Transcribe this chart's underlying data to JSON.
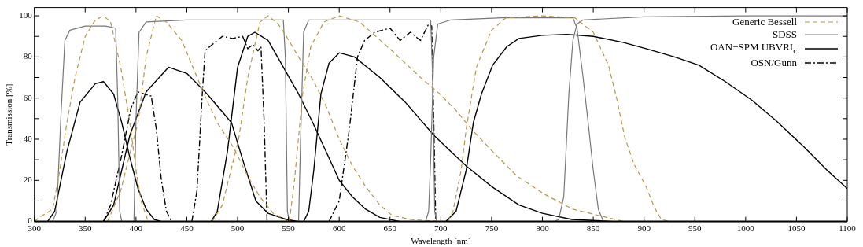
{
  "chart_data": {
    "type": "line",
    "xlabel": "Wavelength [nm]",
    "ylabel": "Transmission [%]",
    "xlim": [
      300,
      1100
    ],
    "xticks": [
      300,
      350,
      400,
      450,
      500,
      550,
      600,
      650,
      700,
      750,
      800,
      850,
      900,
      950,
      1000,
      1050,
      1100
    ],
    "ylim": [
      0,
      104
    ],
    "yticks": [
      0,
      {
        "value": 10,
        "label": null
      },
      20,
      {
        "value": 30,
        "label": null
      },
      40,
      {
        "value": 50,
        "label": null
      },
      60,
      {
        "value": 70,
        "label": null
      },
      80,
      {
        "value": 90,
        "label": null
      },
      100
    ],
    "grid": false,
    "legend": "top right",
    "marker": "none",
    "series": [
      {
        "name": "Generic Bessell",
        "color": "#b8964a",
        "line_style": "dashed",
        "x": [
          300,
          305,
          318,
          325,
          332,
          340,
          350,
          360,
          368,
          375,
          385,
          394,
          400,
          405,
          412
        ],
        "values": [
          0,
          2,
          6,
          25,
          48,
          70,
          90,
          98,
          100,
          97,
          75,
          48,
          25,
          10,
          0
        ]
      },
      {
        "color": "#b8964a",
        "line_style": "dashed",
        "x": [
          372,
          385,
          395,
          402,
          410,
          420,
          430,
          445,
          467,
          480,
          496,
          510,
          522,
          535,
          550
        ],
        "values": [
          0,
          15,
          35,
          48,
          80,
          100,
          97,
          88,
          62,
          48,
          36,
          22,
          12,
          4,
          0
        ]
      },
      {
        "color": "#b8964a",
        "line_style": "dashed",
        "x": [
          475,
          485,
          495,
          501,
          510,
          522,
          530,
          540,
          548,
          560,
          574,
          588,
          600,
          613,
          626,
          640,
          652,
          670,
          700
        ],
        "values": [
          0,
          8,
          28,
          40,
          70,
          97,
          100,
          96,
          90,
          80,
          69,
          55,
          40,
          27,
          17,
          8,
          3,
          1,
          0
        ]
      },
      {
        "color": "#b8964a",
        "line_style": "dashed",
        "x": [
          551,
          556,
          564,
          572,
          585,
          600,
          620,
          652,
          680,
          699,
          715,
          730,
          751,
          775,
          803,
          830,
          855,
          880
        ],
        "values": [
          0,
          20,
          62,
          85,
          97,
          100,
          97,
          83,
          70,
          62,
          54,
          45,
          34,
          22,
          13,
          6,
          3,
          0
        ]
      },
      {
        "color": "#b8964a",
        "line_style": "dashed",
        "x": [
          707,
          712,
          720,
          725,
          735,
          750,
          764,
          800,
          832,
          850,
          865,
          873,
          881,
          890,
          902,
          910,
          917,
          925
        ],
        "values": [
          0,
          5,
          25,
          45,
          75,
          93,
          99,
          100,
          99,
          92,
          76,
          60,
          41,
          28,
          17,
          7,
          1,
          0
        ]
      },
      {
        "name": "SDSS",
        "color": "#777777",
        "line_style": "solid",
        "x": [
          318,
          322,
          326,
          330,
          335,
          350,
          370,
          380,
          382,
          384,
          386
        ],
        "values": [
          0,
          5,
          50,
          88,
          93,
          95,
          95,
          94,
          60,
          5,
          0
        ]
      },
      {
        "color": "#777777",
        "line_style": "solid",
        "x": [
          398,
          400,
          403,
          410,
          450,
          500,
          545,
          547,
          549,
          551
        ],
        "values": [
          0,
          50,
          92,
          97,
          98,
          98,
          98,
          80,
          5,
          0
        ]
      },
      {
        "color": "#777777",
        "line_style": "solid",
        "x": [
          560,
          562,
          565,
          570,
          620,
          690,
          692,
          694,
          696
        ],
        "values": [
          0,
          40,
          92,
          98,
          98,
          98,
          70,
          5,
          0
        ]
      },
      {
        "color": "#777777",
        "line_style": "solid",
        "x": [
          685,
          688,
          690,
          693,
          697,
          710,
          760,
          830,
          834,
          840,
          845,
          850,
          855,
          860
        ],
        "values": [
          0,
          5,
          30,
          80,
          96,
          98,
          99,
          99,
          94,
          70,
          48,
          25,
          6,
          0
        ]
      },
      {
        "color": "#777777",
        "line_style": "solid",
        "x": [
          812,
          816,
          821,
          826,
          830,
          834,
          840,
          900,
          1000,
          1100
        ],
        "values": [
          0,
          1,
          12,
          62,
          88,
          96,
          98,
          99.5,
          100,
          100
        ]
      },
      {
        "name": "OAN−SPM UBVRI$_{c}$",
        "color": "#000000",
        "line_style": "solid",
        "x": [
          313,
          320,
          332,
          345,
          360,
          368,
          378,
          386,
          394,
          402,
          410,
          418,
          425
        ],
        "values": [
          0,
          5,
          34,
          58,
          67,
          68,
          62,
          48,
          31,
          16,
          6,
          1,
          0
        ]
      },
      {
        "color": "#000000",
        "line_style": "solid",
        "x": [
          368,
          378,
          394,
          410,
          432,
          450,
          470,
          494,
          505,
          518,
          530,
          548,
          560
        ],
        "values": [
          0,
          8,
          42,
          63,
          75,
          72,
          62,
          48,
          30,
          10,
          4,
          1,
          0
        ]
      },
      {
        "color": "#000000",
        "line_style": "solid",
        "x": [
          474,
          480,
          490,
          500,
          510,
          517,
          530,
          545,
          560,
          574,
          588,
          600,
          613,
          626,
          640,
          660
        ],
        "values": [
          0,
          5,
          34,
          75,
          90,
          92,
          88,
          75,
          62,
          48,
          33,
          20,
          12,
          6,
          2,
          0
        ]
      },
      {
        "color": "#000000",
        "line_style": "solid",
        "x": [
          565,
          570,
          575,
          582,
          590,
          600,
          615,
          640,
          665,
          693,
          710,
          725,
          750,
          777,
          800,
          829,
          870
        ],
        "values": [
          0,
          5,
          25,
          62,
          77,
          82,
          80,
          70,
          58,
          42,
          34,
          27,
          17,
          8,
          4,
          1,
          0
        ]
      },
      {
        "color": "#000000",
        "line_style": "solid",
        "x": [
          705,
          715,
          725,
          732,
          740,
          751,
          765,
          777,
          800,
          824,
          850,
          880,
          902,
          930,
          954,
          980,
          1006,
          1030,
          1058,
          1080,
          1100
        ],
        "values": [
          0,
          5,
          25,
          48,
          62,
          76,
          85,
          89,
          90.5,
          91,
          90,
          87,
          84,
          80,
          76,
          68,
          59,
          49,
          36,
          25,
          16
        ]
      },
      {
        "name": "OSN/Gunn",
        "color": "#000000",
        "line_style": "dashdot",
        "x": [
          368,
          375,
          385,
          395,
          402,
          408,
          415,
          420,
          425,
          430,
          435
        ],
        "values": [
          0,
          8,
          30,
          55,
          63,
          62,
          61,
          45,
          20,
          5,
          0
        ]
      },
      {
        "color": "#000000",
        "line_style": "dashdot",
        "x": [
          455,
          460,
          465,
          468,
          475,
          485,
          495,
          505,
          510,
          515,
          520,
          523,
          526,
          529
        ],
        "values": [
          0,
          15,
          60,
          83,
          86,
          90,
          89,
          90,
          84,
          86,
          83,
          85,
          50,
          0
        ]
      },
      {
        "color": "#000000",
        "line_style": "dashdot",
        "x": [
          590,
          600,
          610,
          618,
          625,
          635,
          650,
          660,
          670,
          680,
          688,
          691,
          693,
          695
        ],
        "values": [
          0,
          10,
          45,
          80,
          88,
          92,
          94,
          88,
          92,
          88,
          96,
          95,
          50,
          0
        ]
      }
    ]
  }
}
